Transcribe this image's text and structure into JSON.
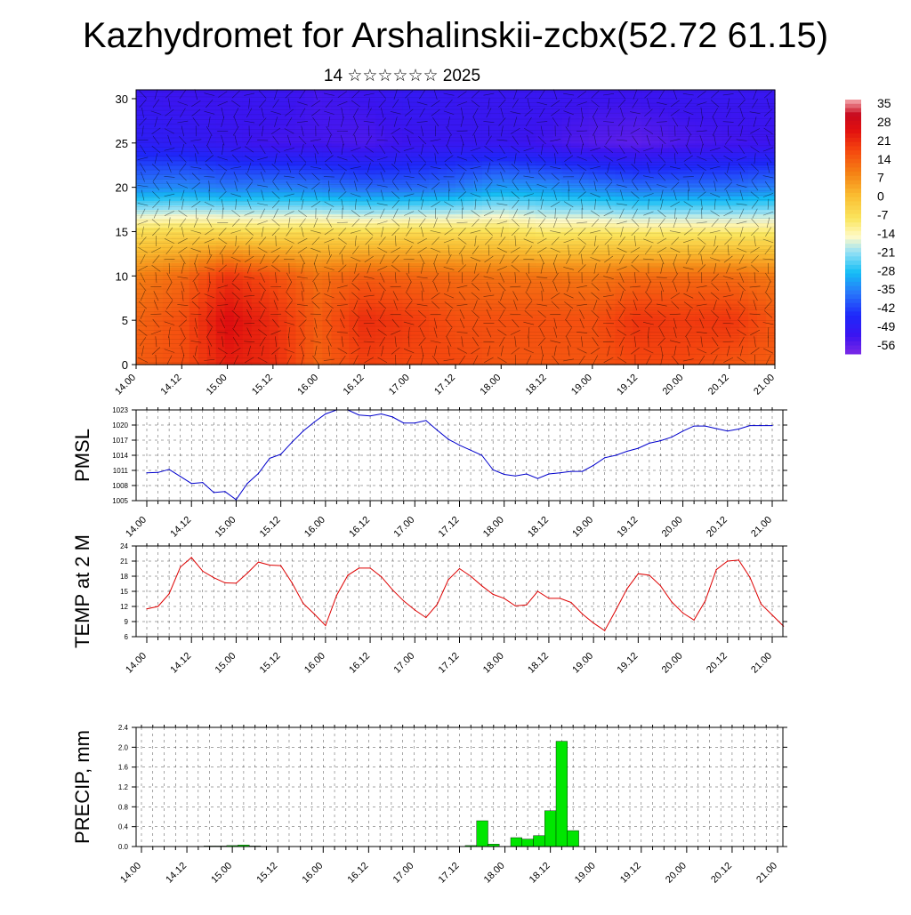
{
  "title": "Kazhydromet for Arshalinskii-zcbx(52.72 61.15)",
  "subtitle": "14 ☆☆☆☆☆☆ 2025",
  "time_ticks": [
    "14.00",
    "14.12",
    "15.00",
    "15.12",
    "16.00",
    "16.12",
    "17.00",
    "17.12",
    "18.00",
    "18.12",
    "19.00",
    "19.12",
    "20.00",
    "20.12",
    "21.00"
  ],
  "chart_data": [
    {
      "type": "heatmap",
      "title": "",
      "xlabel": "",
      "ylabel": "",
      "ylim": [
        0,
        31
      ],
      "yticks": [
        0,
        5,
        10,
        15,
        20,
        25,
        30
      ],
      "colorbar": {
        "labels": [
          "35",
          "28",
          "21",
          "14",
          "7",
          "0",
          "-7",
          "-14",
          "-21",
          "-28",
          "-35",
          "-42",
          "-49",
          "-56"
        ],
        "range": [
          -60,
          38
        ]
      },
      "levels": [
        0,
        5,
        10,
        15,
        20,
        25,
        30
      ],
      "field": [
        [
          15,
          17,
          24,
          22,
          14,
          19,
          18,
          18,
          16,
          16,
          16,
          18,
          18,
          16,
          15
        ],
        [
          14,
          17,
          27,
          22,
          15,
          22,
          20,
          17,
          17,
          17,
          17,
          21,
          20,
          21,
          16
        ],
        [
          10,
          13,
          21,
          17,
          12,
          15,
          14,
          13,
          12,
          12,
          11,
          13,
          13,
          13,
          11
        ],
        [
          -6,
          -5,
          -5,
          -6,
          -5,
          -6,
          -5,
          -6,
          -6,
          -9,
          -8,
          -9,
          -9,
          -9,
          -9
        ],
        [
          -35,
          -34,
          -36,
          -35,
          -36,
          -38,
          -38,
          -36,
          -32,
          -33,
          -35,
          -37,
          -37,
          -37,
          -35
        ],
        [
          -49,
          -50,
          -52,
          -54,
          -54,
          -55,
          -53,
          -52,
          -52,
          -54,
          -56,
          -57,
          -55,
          -54,
          -53
        ],
        [
          -52,
          -53,
          -53,
          -52,
          -54,
          -53,
          -51,
          -52,
          -52,
          -52,
          -53,
          -53,
          -52,
          -52,
          -52
        ]
      ]
    },
    {
      "type": "line",
      "ylabel": "PMSL",
      "ylim": [
        1005,
        1023
      ],
      "yticks": [
        1005,
        1008,
        1011,
        1014,
        1017,
        1020,
        1023
      ],
      "step_hours": 3,
      "series": [
        {
          "values": [
            1010.5,
            1010.6,
            1011.2,
            1009.8,
            1008.4,
            1008.6,
            1006.6,
            1006.8,
            1005.2,
            1008.4,
            1010.4,
            1013.4,
            1014.2,
            1016.6,
            1018.8,
            1020.6,
            1022.2,
            1023.0,
            1023.0,
            1022.0,
            1021.8,
            1022.2,
            1021.6,
            1020.4,
            1020.4,
            1020.9,
            1019.0,
            1017.2,
            1016.0,
            1015.0,
            1014.0,
            1011.1,
            1010.2,
            1009.9,
            1010.3,
            1009.4,
            1010.3,
            1010.5,
            1010.8,
            1010.8,
            1012.0,
            1013.5,
            1014.0,
            1014.8,
            1015.4,
            1016.4,
            1016.9,
            1017.6,
            1018.8,
            1019.8,
            1019.8,
            1019.3,
            1018.8,
            1019.2,
            1019.9,
            1019.9,
            1019.9
          ]
        }
      ]
    },
    {
      "type": "line",
      "ylabel": "TEMP at 2 M",
      "ylim": [
        6,
        24
      ],
      "yticks": [
        6,
        9,
        12,
        15,
        18,
        21,
        24
      ],
      "step_hours": 3,
      "series": [
        {
          "values": [
            11.5,
            12.0,
            14.5,
            19.8,
            21.7,
            19.0,
            17.7,
            16.7,
            16.6,
            18.6,
            20.8,
            20.2,
            20.1,
            16.7,
            12.6,
            10.5,
            8.2,
            14.2,
            18.2,
            19.6,
            19.6,
            17.9,
            15.3,
            13.1,
            11.3,
            9.8,
            12.4,
            17.3,
            19.5,
            18.0,
            16.1,
            14.4,
            13.6,
            12.1,
            12.3,
            15.0,
            13.6,
            13.6,
            12.8,
            10.5,
            8.7,
            7.2,
            11.3,
            15.5,
            18.5,
            18.2,
            16.1,
            12.9,
            10.7,
            9.3,
            13.1,
            19.3,
            21.0,
            21.2,
            17.8,
            12.5,
            10.3,
            8.1
          ]
        }
      ]
    },
    {
      "type": "bar",
      "ylabel": "PRECIP, mm",
      "ylim": [
        0,
        2.4
      ],
      "yticks": [
        "0.0",
        "0.4",
        "0.8",
        "1.2",
        "1.6",
        "2.0",
        "2.4"
      ],
      "step_hours": 3,
      "series": [
        {
          "values": [
            0,
            0,
            0,
            0,
            0,
            0,
            0.01,
            0.01,
            0.02,
            0.03,
            0.01,
            0,
            0,
            0,
            0,
            0,
            0,
            0,
            0,
            0,
            0,
            0,
            0,
            0,
            0,
            0,
            0,
            0,
            0,
            0.02,
            0.52,
            0.05,
            0,
            0.18,
            0.15,
            0.22,
            0.72,
            2.12,
            0.32,
            0,
            0,
            0,
            0,
            0,
            0,
            0,
            0,
            0,
            0,
            0,
            0,
            0,
            0,
            0,
            0,
            0,
            0
          ]
        }
      ]
    }
  ]
}
